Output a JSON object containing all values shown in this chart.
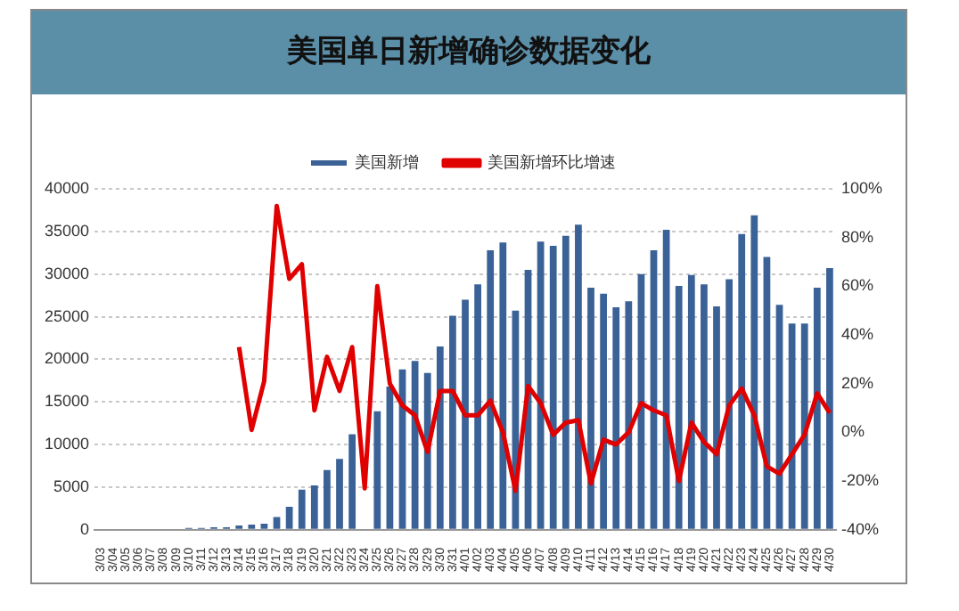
{
  "chart_data": {
    "type": "bar",
    "title": "美国单日新增确诊数据变化",
    "categories": [
      "3/03",
      "3/04",
      "3/05",
      "3/06",
      "3/07",
      "3/08",
      "3/09",
      "3/10",
      "3/11",
      "3/12",
      "3/13",
      "3/14",
      "3/15",
      "3/16",
      "3/17",
      "3/18",
      "3/19",
      "3/20",
      "3/21",
      "3/22",
      "3/23",
      "3/24",
      "3/25",
      "3/26",
      "3/27",
      "3/28",
      "3/29",
      "3/30",
      "3/31",
      "4/01",
      "4/02",
      "4/03",
      "4/04",
      "4/05",
      "4/06",
      "4/07",
      "4/08",
      "4/09",
      "4/10",
      "4/11",
      "4/12",
      "4/13",
      "4/14",
      "4/15",
      "4/16",
      "4/17",
      "4/18",
      "4/19",
      "4/20",
      "4/21",
      "4/22",
      "4/23",
      "4/24",
      "4/25",
      "4/26",
      "4/27",
      "4/28",
      "4/29",
      "4/30"
    ],
    "series": [
      {
        "name": "美国新增",
        "color": "#3a6296",
        "values": [
          0,
          0,
          0,
          0,
          0,
          100,
          100,
          200,
          200,
          300,
          300,
          500,
          600,
          700,
          1500,
          2700,
          4700,
          5200,
          7000,
          8300,
          11200,
          null,
          13900,
          16800,
          18800,
          19800,
          18400,
          21500,
          25100,
          27000,
          28800,
          32800,
          33700,
          25700,
          30500,
          33800,
          33300,
          34500,
          35800,
          28400,
          27700,
          26100,
          26800,
          30000,
          32800,
          35200,
          28600,
          29900,
          28800,
          26200,
          29400,
          34700,
          36900,
          32000,
          26400,
          24200,
          24200,
          28400,
          30700
        ]
      },
      {
        "name": "美国新增环比增速",
        "type": "line",
        "axis": "y2",
        "color": "#e00000",
        "values": [
          null,
          null,
          null,
          null,
          null,
          null,
          null,
          null,
          null,
          null,
          null,
          35,
          1,
          21,
          93,
          63,
          69,
          9,
          31,
          17,
          35,
          -23,
          60,
          20,
          11,
          7,
          -8,
          17,
          17,
          7,
          7,
          13,
          0,
          -24,
          19,
          12,
          -1,
          4,
          5,
          -21,
          -3,
          -5,
          0,
          12,
          9,
          7,
          -20,
          4,
          -4,
          -9,
          11,
          18,
          7,
          -14,
          -17,
          -9,
          -1,
          16,
          8
        ]
      }
    ],
    "ylim": [
      0,
      40000
    ],
    "yticks": [
      0,
      5000,
      10000,
      15000,
      20000,
      25000,
      30000,
      35000,
      40000
    ],
    "y2lim": [
      -40,
      100
    ],
    "y2ticks": [
      {
        "value": -40,
        "label": "-40%"
      },
      {
        "value": -20,
        "label": "-20%"
      },
      {
        "value": 0,
        "label": "0%"
      },
      {
        "value": 20,
        "label": "20%"
      },
      {
        "value": 40,
        "label": "40%"
      },
      {
        "value": 60,
        "label": "60%"
      },
      {
        "value": 80,
        "label": "80%"
      },
      {
        "value": 100,
        "label": "100%"
      }
    ],
    "grid": "y",
    "legend": "top",
    "marker": "none",
    "line_style": "solid"
  }
}
